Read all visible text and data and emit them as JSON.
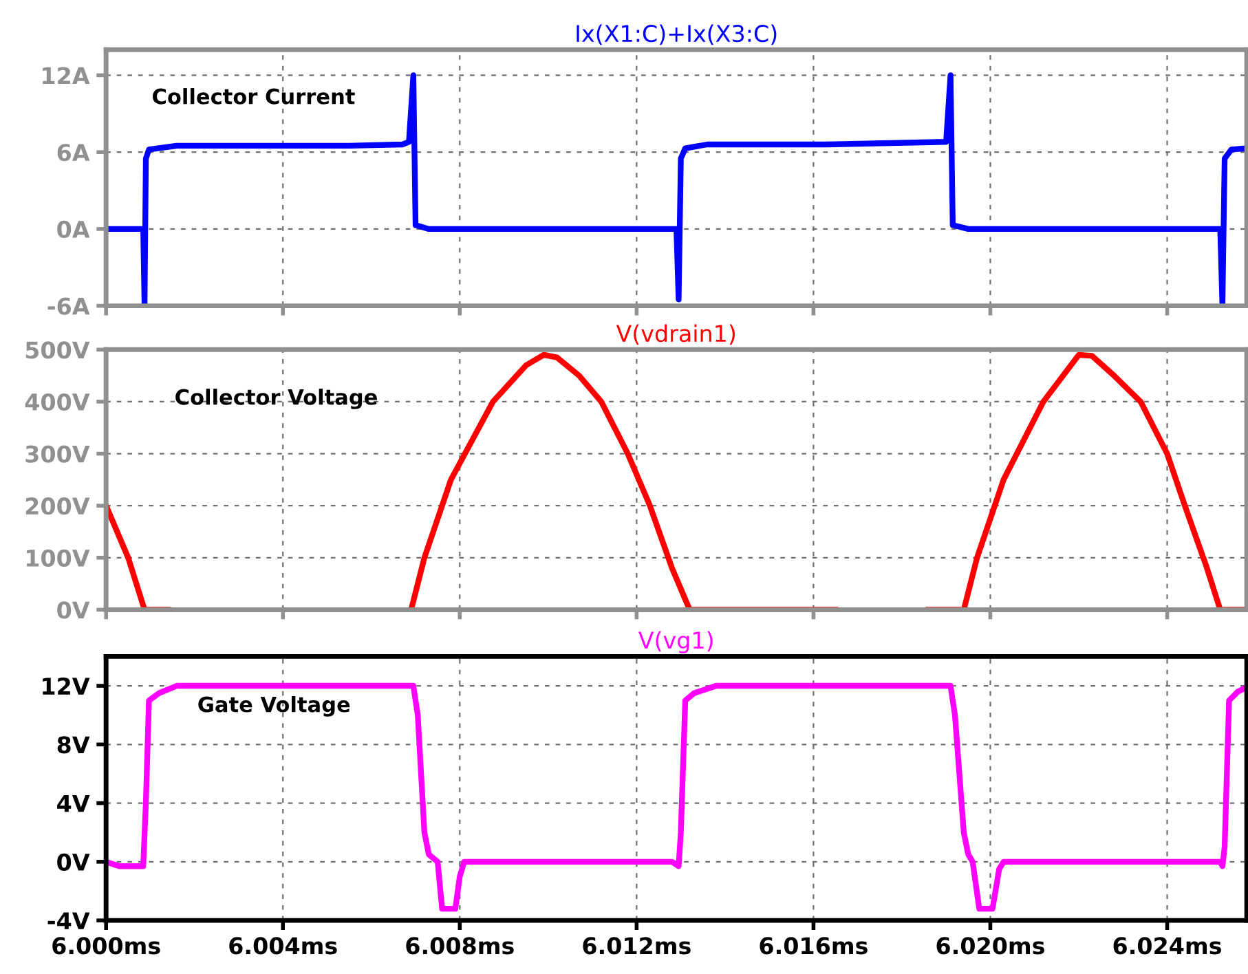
{
  "chart_data": [
    {
      "type": "line",
      "xlim": [
        6.0,
        6.0258
      ],
      "ylim": [
        -6,
        14
      ],
      "tick_labels": "y",
      "grid": true,
      "line_style": "solid",
      "marker": "none",
      "xticks": [
        {
          "value": 6.0,
          "label": null
        },
        {
          "value": 6.004,
          "label": null
        },
        {
          "value": 6.008,
          "label": null
        },
        {
          "value": 6.012,
          "label": null
        },
        {
          "value": 6.016,
          "label": null
        },
        {
          "value": 6.02,
          "label": null
        },
        {
          "value": 6.024,
          "label": null
        }
      ],
      "yticks": [
        {
          "value": -6,
          "label": "-6A"
        },
        {
          "value": 0,
          "label": "0A"
        },
        {
          "value": 6,
          "label": "6A"
        },
        {
          "value": 12,
          "label": "12A"
        }
      ],
      "annotations": [
        "Collector Current"
      ],
      "series": [
        {
          "name": "Ix(X1:C)+Ix(X3:C)",
          "color": "#0000ff",
          "x": [
            6.0,
            6.00084,
            6.00087,
            6.0009,
            6.00097,
            6.0016,
            6.0055,
            6.0067,
            6.00685,
            6.00695,
            6.007,
            6.0073,
            6.0129,
            6.01295,
            6.013,
            6.0131,
            6.0136,
            6.0163,
            6.019,
            6.0191,
            6.01915,
            6.0195,
            6.0252,
            6.02525,
            6.0253,
            6.02545,
            6.0258
          ],
          "values": [
            0,
            0,
            -6,
            5.5,
            6.2,
            6.5,
            6.5,
            6.6,
            6.8,
            12,
            0.3,
            0,
            0,
            -5.5,
            5.5,
            6.3,
            6.6,
            6.6,
            6.8,
            12,
            0.3,
            0,
            0,
            -6,
            5.5,
            6.2,
            6.3
          ]
        }
      ]
    },
    {
      "type": "line",
      "xlim": [
        6.0,
        6.0258
      ],
      "ylim": [
        0,
        500
      ],
      "tick_labels": "y",
      "grid": true,
      "line_style": "solid",
      "marker": "none",
      "xticks": [
        {
          "value": 6.0,
          "label": null
        },
        {
          "value": 6.004,
          "label": null
        },
        {
          "value": 6.008,
          "label": null
        },
        {
          "value": 6.012,
          "label": null
        },
        {
          "value": 6.016,
          "label": null
        },
        {
          "value": 6.02,
          "label": null
        },
        {
          "value": 6.024,
          "label": null
        }
      ],
      "yticks": [
        {
          "value": 0,
          "label": "0V"
        },
        {
          "value": 100,
          "label": "100V"
        },
        {
          "value": 200,
          "label": "200V"
        },
        {
          "value": 300,
          "label": "300V"
        },
        {
          "value": 400,
          "label": "400V"
        },
        {
          "value": 500,
          "label": "500V"
        }
      ],
      "annotations": [
        "Collector Voltage"
      ],
      "series": [
        {
          "name": "V(vdrain1)",
          "color": "#ff0000",
          "x": [
            6.0,
            6.0005,
            6.00087,
            6.0014,
            6.003,
            6.0069,
            6.0072,
            6.0078,
            6.00875,
            6.0095,
            6.0099,
            6.0102,
            6.0107,
            6.0112,
            6.0118,
            6.0123,
            6.0128,
            6.0132,
            6.0165,
            6.0175,
            6.0186,
            6.0194,
            6.0197,
            6.0203,
            6.0212,
            6.022,
            6.0223,
            6.0228,
            6.0234,
            6.024,
            6.0244,
            6.0249,
            6.0252,
            6.0258
          ],
          "values": [
            200,
            100,
            0,
            0,
            null,
            0,
            100,
            250,
            400,
            470,
            490,
            485,
            450,
            400,
            300,
            200,
            80,
            0,
            0,
            null,
            0,
            0,
            100,
            250,
            400,
            490,
            488,
            450,
            400,
            300,
            200,
            80,
            0,
            0
          ]
        }
      ]
    },
    {
      "type": "line",
      "xlim": [
        6.0,
        6.0258
      ],
      "ylim": [
        -4,
        14
      ],
      "grid": true,
      "line_style": "solid",
      "marker": "none",
      "xticks": [
        {
          "value": 6.0,
          "label": "6.000ms"
        },
        {
          "value": 6.004,
          "label": "6.004ms"
        },
        {
          "value": 6.008,
          "label": "6.008ms"
        },
        {
          "value": 6.012,
          "label": "6.012ms"
        },
        {
          "value": 6.016,
          "label": "6.016ms"
        },
        {
          "value": 6.02,
          "label": "6.020ms"
        },
        {
          "value": 6.024,
          "label": "6.024ms"
        }
      ],
      "yticks": [
        {
          "value": -4,
          "label": "-4V"
        },
        {
          "value": 0,
          "label": "0V"
        },
        {
          "value": 4,
          "label": "4V"
        },
        {
          "value": 8,
          "label": "8V"
        },
        {
          "value": 12,
          "label": "12V"
        }
      ],
      "annotations": [
        "Gate Voltage"
      ],
      "series": [
        {
          "name": "V(vg1)",
          "color": "#ff00ff",
          "x": [
            6.0,
            6.0003,
            6.00084,
            6.0009,
            6.00097,
            6.0012,
            6.0016,
            6.00695,
            6.00705,
            6.0072,
            6.0073,
            6.0075,
            6.0076,
            6.0079,
            6.008,
            6.0081,
            6.0128,
            6.01295,
            6.013,
            6.0131,
            6.0133,
            6.0138,
            6.0191,
            6.0192,
            6.0194,
            6.0195,
            6.0196,
            6.01975,
            6.02005,
            6.0202,
            6.0203,
            6.0252,
            6.02525,
            6.0253,
            6.0254,
            6.0256,
            6.0258
          ],
          "values": [
            0,
            -0.3,
            -0.3,
            4,
            11,
            11.5,
            12,
            12,
            10,
            2,
            0.5,
            0,
            -3.2,
            -3.2,
            -1,
            0,
            0,
            -0.3,
            2,
            11,
            11.5,
            12,
            12,
            10,
            2,
            0.5,
            0,
            -3.2,
            -3.2,
            -0.5,
            0,
            0,
            -0.3,
            1,
            11,
            11.6,
            11.9
          ]
        }
      ]
    }
  ]
}
